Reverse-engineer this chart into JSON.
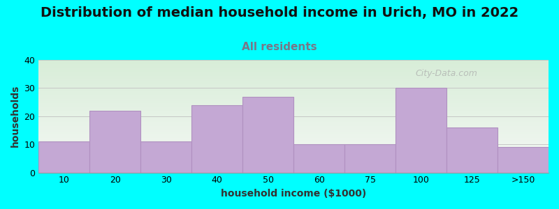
{
  "title": "Distribution of median household income in Urich, MO in 2022",
  "subtitle": "All residents",
  "xlabel": "household income ($1000)",
  "ylabel": "households",
  "background_color": "#00FFFF",
  "bar_color": "#C4A8D4",
  "bar_edge_color": "#B090C0",
  "categories": [
    "10",
    "20",
    "30",
    "40",
    "50",
    "60",
    "75",
    "100",
    "125",
    ">150"
  ],
  "values": [
    11,
    22,
    11,
    24,
    27,
    10,
    10,
    30,
    16,
    9
  ],
  "ylim": [
    0,
    40
  ],
  "yticks": [
    0,
    10,
    20,
    30,
    40
  ],
  "title_fontsize": 14,
  "subtitle_fontsize": 11,
  "axis_label_fontsize": 10,
  "tick_fontsize": 9,
  "watermark_text": "City-Data.com",
  "watermark_color": "#aaaaaa",
  "subtitle_color": "#777788",
  "title_color": "#111111",
  "gradient_top": "#d8edd8",
  "gradient_bottom": "#f5f8f5"
}
